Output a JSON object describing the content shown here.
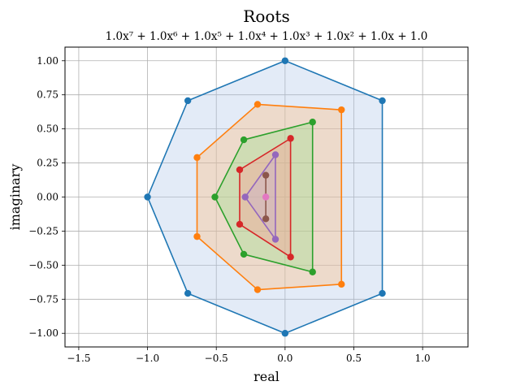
{
  "chart_data": {
    "type": "scatter",
    "title": "Roots",
    "subtitle": "1.0x⁷ + 1.0x⁶ + 1.0x⁵ + 1.0x⁴ + 1.0x³ + 1.0x² + 1.0x + 1.0",
    "xlabel": "real",
    "ylabel": "imaginary",
    "xlim": [
      -1.6,
      1.33
    ],
    "ylim": [
      -1.1,
      1.1
    ],
    "xticks": [
      -1.5,
      -1.0,
      -0.5,
      0.0,
      0.5,
      1.0
    ],
    "xtick_labels": [
      "−1.5",
      "−1.0",
      "−0.5",
      "0.0",
      "0.5",
      "1.0"
    ],
    "yticks": [
      1.0,
      0.75,
      0.5,
      0.25,
      0.0,
      -0.25,
      -0.5,
      -0.75,
      -1.0
    ],
    "ytick_labels": [
      "1.00",
      "0.75",
      "0.50",
      "0.25",
      "0.00",
      "−0.25",
      "−0.50",
      "−0.75",
      "−1.00"
    ],
    "grid": true,
    "series": [
      {
        "color": "#1f77b4",
        "fill": "#aec7e8",
        "x": [
          0.0,
          0.707,
          0.707,
          0.0,
          -0.707,
          -1.0,
          -0.707
        ],
        "y": [
          1.0,
          0.707,
          -0.707,
          -1.0,
          -0.707,
          0.0,
          0.707
        ]
      },
      {
        "color": "#ff7f0e",
        "fill": "#ffbb78",
        "x": [
          -0.2,
          0.41,
          0.41,
          -0.2,
          -0.64,
          -0.64
        ],
        "y": [
          0.68,
          0.64,
          -0.64,
          -0.68,
          -0.29,
          0.29
        ]
      },
      {
        "color": "#2ca02c",
        "fill": "#98df8a",
        "x": [
          -0.3,
          0.2,
          0.2,
          -0.3,
          -0.51
        ],
        "y": [
          0.42,
          0.55,
          -0.55,
          -0.42,
          0.0
        ]
      },
      {
        "color": "#d62728",
        "fill": "#ff9896",
        "x": [
          0.04,
          0.04,
          -0.33,
          -0.33
        ],
        "y": [
          0.43,
          -0.44,
          -0.2,
          0.2
        ]
      },
      {
        "color": "#9467bd",
        "fill": "#c5b0d5",
        "x": [
          -0.07,
          -0.07,
          -0.29
        ],
        "y": [
          0.31,
          -0.31,
          0.0
        ]
      },
      {
        "color": "#8c564b",
        "fill": "#c49c94",
        "x": [
          -0.14,
          -0.14
        ],
        "y": [
          0.16,
          -0.16
        ]
      },
      {
        "color": "#e377c2",
        "fill": "#f7b6d2",
        "x": [
          -0.14
        ],
        "y": [
          0.0
        ]
      }
    ]
  }
}
